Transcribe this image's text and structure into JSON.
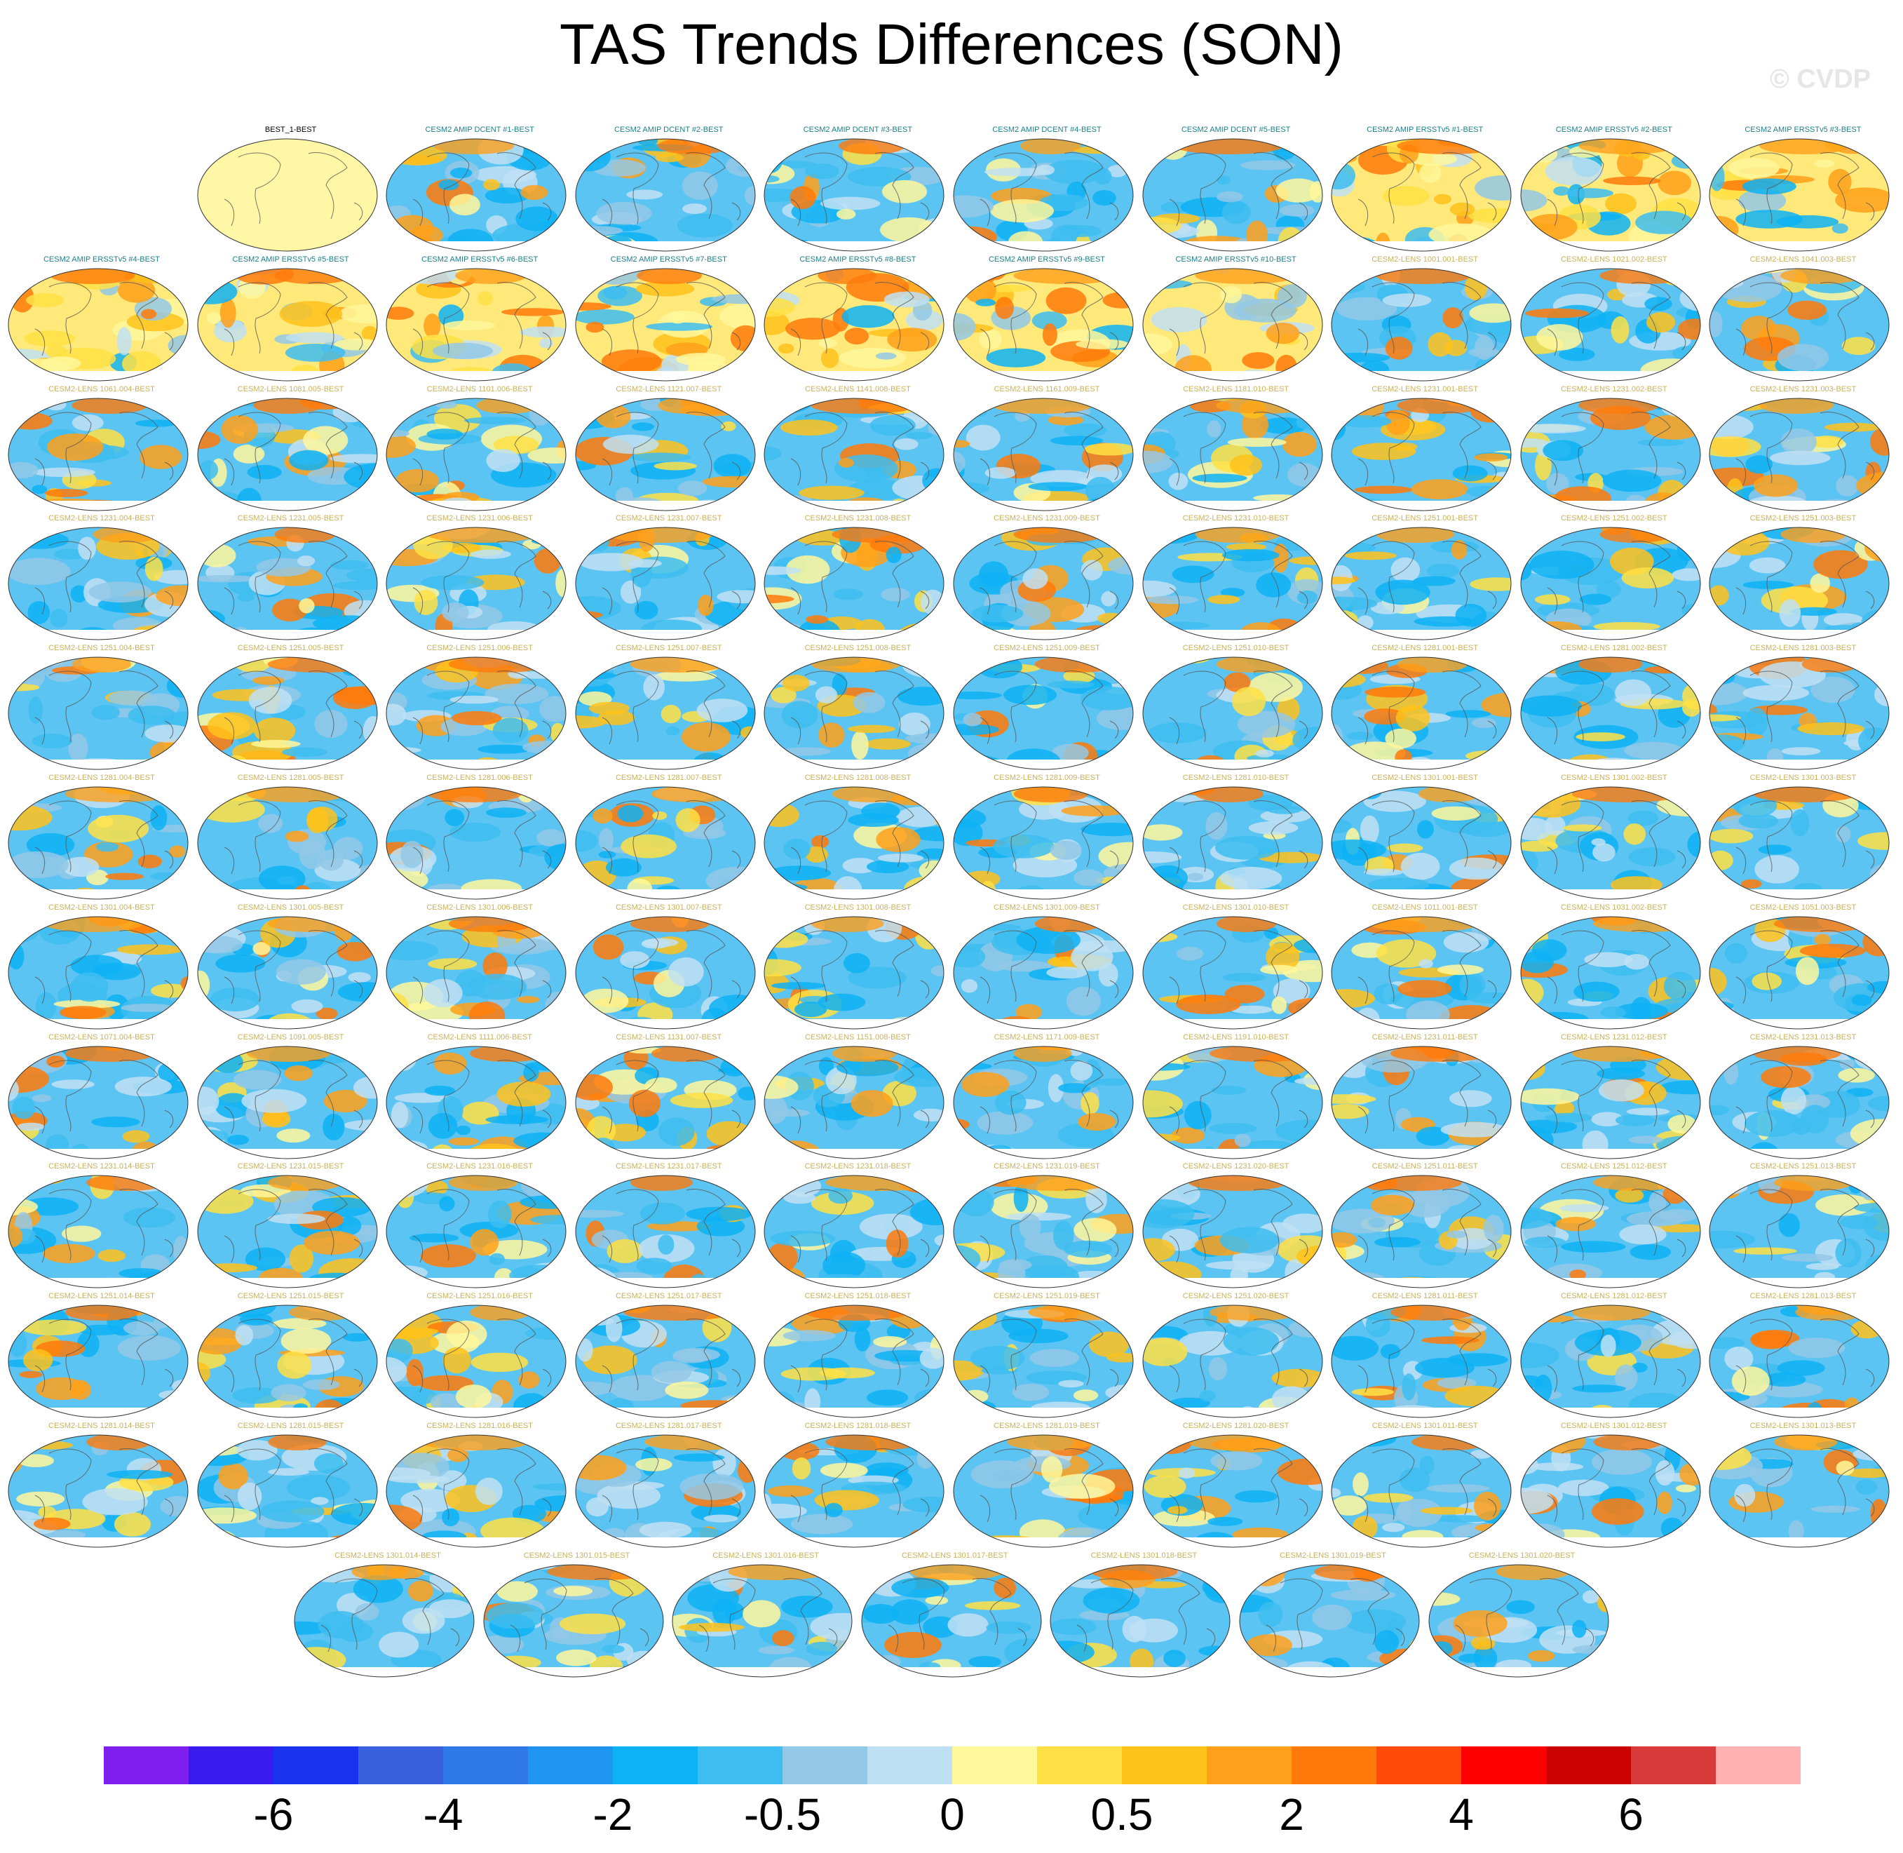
{
  "title": "TAS Trends Differences (SON)",
  "watermark": "© CVDP",
  "legend": {
    "colors": [
      "#7f1fef",
      "#3a1bef",
      "#1a33ee",
      "#3a61dd",
      "#2e78e8",
      "#1f94f0",
      "#0db1f5",
      "#3dbdf0",
      "#93c8e6",
      "#bfe0f3",
      "#fff79b",
      "#ffe044",
      "#ffc21a",
      "#ffa01a",
      "#ff7a0a",
      "#ff4a0a",
      "#ff0000",
      "#cc0000",
      "#d93a3a",
      "#ffb0b0"
    ],
    "tick_labels": [
      "-6",
      "-4",
      "-2",
      "-0.5",
      "0",
      "0.5",
      "2",
      "4",
      "6"
    ],
    "tick_after_box": [
      2,
      4,
      6,
      8,
      10,
      12,
      14,
      16,
      18
    ]
  },
  "panels": [
    {
      "label": "BEST_1-BEST",
      "kind": "obs"
    },
    {
      "label": "CESM2 AMIP DCENT #1-BEST",
      "kind": "amip"
    },
    {
      "label": "CESM2 AMIP DCENT #2-BEST",
      "kind": "amip"
    },
    {
      "label": "CESM2 AMIP DCENT #3-BEST",
      "kind": "amip"
    },
    {
      "label": "CESM2 AMIP DCENT #4-BEST",
      "kind": "amip"
    },
    {
      "label": "CESM2 AMIP DCENT #5-BEST",
      "kind": "amip"
    },
    {
      "label": "CESM2 AMIP ERSSTv5 #1-BEST",
      "kind": "amip"
    },
    {
      "label": "CESM2 AMIP ERSSTv5 #2-BEST",
      "kind": "amip"
    },
    {
      "label": "CESM2 AMIP ERSSTv5 #3-BEST",
      "kind": "amip"
    },
    {
      "label": "CESM2 AMIP ERSSTv5 #4-BEST",
      "kind": "amip"
    },
    {
      "label": "CESM2 AMIP ERSSTv5 #5-BEST",
      "kind": "amip"
    },
    {
      "label": "CESM2 AMIP ERSSTv5 #6-BEST",
      "kind": "amip"
    },
    {
      "label": "CESM2 AMIP ERSSTv5 #7-BEST",
      "kind": "amip"
    },
    {
      "label": "CESM2 AMIP ERSSTv5 #8-BEST",
      "kind": "amip"
    },
    {
      "label": "CESM2 AMIP ERSSTv5 #9-BEST",
      "kind": "amip"
    },
    {
      "label": "CESM2 AMIP ERSSTv5 #10-BEST",
      "kind": "amip"
    },
    {
      "label": "CESM2-LENS 1001.001-BEST",
      "kind": "lens"
    },
    {
      "label": "CESM2-LENS 1021.002-BEST",
      "kind": "lens"
    },
    {
      "label": "CESM2-LENS 1041.003-BEST",
      "kind": "lens"
    },
    {
      "label": "CESM2-LENS 1061.004-BEST",
      "kind": "lens"
    },
    {
      "label": "CESM2-LENS 1081.005-BEST",
      "kind": "lens"
    },
    {
      "label": "CESM2-LENS 1101.006-BEST",
      "kind": "lens"
    },
    {
      "label": "CESM2-LENS 1121.007-BEST",
      "kind": "lens"
    },
    {
      "label": "CESM2-LENS 1141.008-BEST",
      "kind": "lens"
    },
    {
      "label": "CESM2-LENS 1161.009-BEST",
      "kind": "lens"
    },
    {
      "label": "CESM2-LENS 1181.010-BEST",
      "kind": "lens"
    },
    {
      "label": "CESM2-LENS 1231.001-BEST",
      "kind": "lens"
    },
    {
      "label": "CESM2-LENS 1231.002-BEST",
      "kind": "lens"
    },
    {
      "label": "CESM2-LENS 1231.003-BEST",
      "kind": "lens"
    },
    {
      "label": "CESM2-LENS 1231.004-BEST",
      "kind": "lens"
    },
    {
      "label": "CESM2-LENS 1231.005-BEST",
      "kind": "lens"
    },
    {
      "label": "CESM2-LENS 1231.006-BEST",
      "kind": "lens"
    },
    {
      "label": "CESM2-LENS 1231.007-BEST",
      "kind": "lens"
    },
    {
      "label": "CESM2-LENS 1231.008-BEST",
      "kind": "lens"
    },
    {
      "label": "CESM2-LENS 1231.009-BEST",
      "kind": "lens"
    },
    {
      "label": "CESM2-LENS 1231.010-BEST",
      "kind": "lens"
    },
    {
      "label": "CESM2-LENS 1251.001-BEST",
      "kind": "lens"
    },
    {
      "label": "CESM2-LENS 1251.002-BEST",
      "kind": "lens"
    },
    {
      "label": "CESM2-LENS 1251.003-BEST",
      "kind": "lens"
    },
    {
      "label": "CESM2-LENS 1251.004-BEST",
      "kind": "lens"
    },
    {
      "label": "CESM2-LENS 1251.005-BEST",
      "kind": "lens"
    },
    {
      "label": "CESM2-LENS 1251.006-BEST",
      "kind": "lens"
    },
    {
      "label": "CESM2-LENS 1251.007-BEST",
      "kind": "lens"
    },
    {
      "label": "CESM2-LENS 1251.008-BEST",
      "kind": "lens"
    },
    {
      "label": "CESM2-LENS 1251.009-BEST",
      "kind": "lens"
    },
    {
      "label": "CESM2-LENS 1251.010-BEST",
      "kind": "lens"
    },
    {
      "label": "CESM2-LENS 1281.001-BEST",
      "kind": "lens"
    },
    {
      "label": "CESM2-LENS 1281.002-BEST",
      "kind": "lens"
    },
    {
      "label": "CESM2-LENS 1281.003-BEST",
      "kind": "lens"
    },
    {
      "label": "CESM2-LENS 1281.004-BEST",
      "kind": "lens"
    },
    {
      "label": "CESM2-LENS 1281.005-BEST",
      "kind": "lens"
    },
    {
      "label": "CESM2-LENS 1281.006-BEST",
      "kind": "lens"
    },
    {
      "label": "CESM2-LENS 1281.007-BEST",
      "kind": "lens"
    },
    {
      "label": "CESM2-LENS 1281.008-BEST",
      "kind": "lens"
    },
    {
      "label": "CESM2-LENS 1281.009-BEST",
      "kind": "lens"
    },
    {
      "label": "CESM2-LENS 1281.010-BEST",
      "kind": "lens"
    },
    {
      "label": "CESM2-LENS 1301.001-BEST",
      "kind": "lens"
    },
    {
      "label": "CESM2-LENS 1301.002-BEST",
      "kind": "lens"
    },
    {
      "label": "CESM2-LENS 1301.003-BEST",
      "kind": "lens"
    },
    {
      "label": "CESM2-LENS 1301.004-BEST",
      "kind": "lens"
    },
    {
      "label": "CESM2-LENS 1301.005-BEST",
      "kind": "lens"
    },
    {
      "label": "CESM2-LENS 1301.006-BEST",
      "kind": "lens"
    },
    {
      "label": "CESM2-LENS 1301.007-BEST",
      "kind": "lens"
    },
    {
      "label": "CESM2-LENS 1301.008-BEST",
      "kind": "lens"
    },
    {
      "label": "CESM2-LENS 1301.009-BEST",
      "kind": "lens"
    },
    {
      "label": "CESM2-LENS 1301.010-BEST",
      "kind": "lens"
    },
    {
      "label": "CESM2-LENS 1011.001-BEST",
      "kind": "lens"
    },
    {
      "label": "CESM2-LENS 1031.002-BEST",
      "kind": "lens"
    },
    {
      "label": "CESM2-LENS 1051.003-BEST",
      "kind": "lens"
    },
    {
      "label": "CESM2-LENS 1071.004-BEST",
      "kind": "lens"
    },
    {
      "label": "CESM2-LENS 1091.005-BEST",
      "kind": "lens"
    },
    {
      "label": "CESM2-LENS 1111.006-BEST",
      "kind": "lens"
    },
    {
      "label": "CESM2-LENS 1131.007-BEST",
      "kind": "lens"
    },
    {
      "label": "CESM2-LENS 1151.008-BEST",
      "kind": "lens"
    },
    {
      "label": "CESM2-LENS 1171.009-BEST",
      "kind": "lens"
    },
    {
      "label": "CESM2-LENS 1191.010-BEST",
      "kind": "lens"
    },
    {
      "label": "CESM2-LENS 1231.011-BEST",
      "kind": "lens"
    },
    {
      "label": "CESM2-LENS 1231.012-BEST",
      "kind": "lens"
    },
    {
      "label": "CESM2-LENS 1231.013-BEST",
      "kind": "lens"
    },
    {
      "label": "CESM2-LENS 1231.014-BEST",
      "kind": "lens"
    },
    {
      "label": "CESM2-LENS 1231.015-BEST",
      "kind": "lens"
    },
    {
      "label": "CESM2-LENS 1231.016-BEST",
      "kind": "lens"
    },
    {
      "label": "CESM2-LENS 1231.017-BEST",
      "kind": "lens"
    },
    {
      "label": "CESM2-LENS 1231.018-BEST",
      "kind": "lens"
    },
    {
      "label": "CESM2-LENS 1231.019-BEST",
      "kind": "lens"
    },
    {
      "label": "CESM2-LENS 1231.020-BEST",
      "kind": "lens"
    },
    {
      "label": "CESM2-LENS 1251.011-BEST",
      "kind": "lens"
    },
    {
      "label": "CESM2-LENS 1251.012-BEST",
      "kind": "lens"
    },
    {
      "label": "CESM2-LENS 1251.013-BEST",
      "kind": "lens"
    },
    {
      "label": "CESM2-LENS 1251.014-BEST",
      "kind": "lens"
    },
    {
      "label": "CESM2-LENS 1251.015-BEST",
      "kind": "lens"
    },
    {
      "label": "CESM2-LENS 1251.016-BEST",
      "kind": "lens"
    },
    {
      "label": "CESM2-LENS 1251.017-BEST",
      "kind": "lens"
    },
    {
      "label": "CESM2-LENS 1251.018-BEST",
      "kind": "lens"
    },
    {
      "label": "CESM2-LENS 1251.019-BEST",
      "kind": "lens"
    },
    {
      "label": "CESM2-LENS 1251.020-BEST",
      "kind": "lens"
    },
    {
      "label": "CESM2-LENS 1281.011-BEST",
      "kind": "lens"
    },
    {
      "label": "CESM2-LENS 1281.012-BEST",
      "kind": "lens"
    },
    {
      "label": "CESM2-LENS 1281.013-BEST",
      "kind": "lens"
    },
    {
      "label": "CESM2-LENS 1281.014-BEST",
      "kind": "lens"
    },
    {
      "label": "CESM2-LENS 1281.015-BEST",
      "kind": "lens"
    },
    {
      "label": "CESM2-LENS 1281.016-BEST",
      "kind": "lens"
    },
    {
      "label": "CESM2-LENS 1281.017-BEST",
      "kind": "lens"
    },
    {
      "label": "CESM2-LENS 1281.018-BEST",
      "kind": "lens"
    },
    {
      "label": "CESM2-LENS 1281.019-BEST",
      "kind": "lens"
    },
    {
      "label": "CESM2-LENS 1281.020-BEST",
      "kind": "lens"
    },
    {
      "label": "CESM2-LENS 1301.011-BEST",
      "kind": "lens"
    },
    {
      "label": "CESM2-LENS 1301.012-BEST",
      "kind": "lens"
    },
    {
      "label": "CESM2-LENS 1301.013-BEST",
      "kind": "lens"
    },
    {
      "label": "CESM2-LENS 1301.014-BEST",
      "kind": "lens"
    },
    {
      "label": "CESM2-LENS 1301.015-BEST",
      "kind": "lens"
    },
    {
      "label": "CESM2-LENS 1301.016-BEST",
      "kind": "lens"
    },
    {
      "label": "CESM2-LENS 1301.017-BEST",
      "kind": "lens"
    },
    {
      "label": "CESM2-LENS 1301.018-BEST",
      "kind": "lens"
    },
    {
      "label": "CESM2-LENS 1301.019-BEST",
      "kind": "lens"
    },
    {
      "label": "CESM2-LENS 1301.020-BEST",
      "kind": "lens"
    }
  ]
}
